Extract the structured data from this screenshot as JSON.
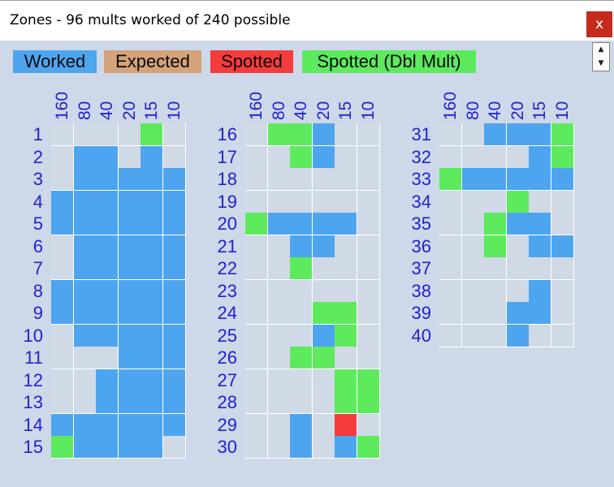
{
  "window": {
    "title": "Zones - 96 mults worked of 240 possible",
    "close_label": "x"
  },
  "legend": [
    {
      "label": "Worked",
      "color": "#4ea5ef"
    },
    {
      "label": "Expected",
      "color": "#d5a27a"
    },
    {
      "label": "Spotted",
      "color": "#f53b3b"
    },
    {
      "label": "Spotted (Dbl Mult)",
      "color": "#5dea5d"
    }
  ],
  "colors": {
    "W": "#4ea5ef",
    "E": "#d5a27a",
    "S": "#f53b3b",
    "D": "#5dea5d",
    "empty": "#d0d9e6"
  },
  "bands": [
    "160",
    "80",
    "40",
    "20",
    "15",
    "10"
  ],
  "zones": [
    {
      "zone": "1",
      "cells": [
        "",
        "",
        "",
        "",
        "D",
        ""
      ]
    },
    {
      "zone": "2",
      "cells": [
        "",
        "W",
        "W",
        "",
        "W",
        ""
      ]
    },
    {
      "zone": "3",
      "cells": [
        "",
        "W",
        "W",
        "W",
        "W",
        "W"
      ]
    },
    {
      "zone": "4",
      "cells": [
        "W",
        "W",
        "W",
        "W",
        "W",
        "W"
      ]
    },
    {
      "zone": "5",
      "cells": [
        "W",
        "W",
        "W",
        "W",
        "W",
        "W"
      ]
    },
    {
      "zone": "6",
      "cells": [
        "",
        "W",
        "W",
        "W",
        "W",
        "W"
      ]
    },
    {
      "zone": "7",
      "cells": [
        "",
        "W",
        "W",
        "W",
        "W",
        "W"
      ]
    },
    {
      "zone": "8",
      "cells": [
        "W",
        "W",
        "W",
        "W",
        "W",
        "W"
      ]
    },
    {
      "zone": "9",
      "cells": [
        "W",
        "W",
        "W",
        "W",
        "W",
        "W"
      ]
    },
    {
      "zone": "10",
      "cells": [
        "",
        "W",
        "W",
        "W",
        "W",
        "W"
      ]
    },
    {
      "zone": "11",
      "cells": [
        "",
        "",
        "",
        "W",
        "W",
        "W"
      ]
    },
    {
      "zone": "12",
      "cells": [
        "",
        "",
        "W",
        "W",
        "W",
        "W"
      ]
    },
    {
      "zone": "13",
      "cells": [
        "",
        "",
        "W",
        "W",
        "W",
        "W"
      ]
    },
    {
      "zone": "14",
      "cells": [
        "W",
        "W",
        "W",
        "W",
        "W",
        "W"
      ]
    },
    {
      "zone": "15",
      "cells": [
        "D",
        "W",
        "W",
        "W",
        "W",
        ""
      ]
    },
    {
      "zone": "16",
      "cells": [
        "",
        "D",
        "D",
        "W",
        "",
        ""
      ]
    },
    {
      "zone": "17",
      "cells": [
        "",
        "",
        "D",
        "W",
        "",
        ""
      ]
    },
    {
      "zone": "18",
      "cells": [
        "",
        "",
        "",
        "",
        "",
        ""
      ]
    },
    {
      "zone": "19",
      "cells": [
        "",
        "",
        "",
        "",
        "",
        ""
      ]
    },
    {
      "zone": "20",
      "cells": [
        "D",
        "W",
        "W",
        "W",
        "W",
        ""
      ]
    },
    {
      "zone": "21",
      "cells": [
        "",
        "",
        "W",
        "W",
        "",
        ""
      ]
    },
    {
      "zone": "22",
      "cells": [
        "",
        "",
        "D",
        "",
        "",
        ""
      ]
    },
    {
      "zone": "23",
      "cells": [
        "",
        "",
        "",
        "",
        "",
        ""
      ]
    },
    {
      "zone": "24",
      "cells": [
        "",
        "",
        "",
        "D",
        "D",
        ""
      ]
    },
    {
      "zone": "25",
      "cells": [
        "",
        "",
        "",
        "W",
        "D",
        ""
      ]
    },
    {
      "zone": "26",
      "cells": [
        "",
        "",
        "D",
        "D",
        "",
        ""
      ]
    },
    {
      "zone": "27",
      "cells": [
        "",
        "",
        "",
        "",
        "D",
        "D"
      ]
    },
    {
      "zone": "28",
      "cells": [
        "",
        "",
        "",
        "",
        "D",
        "D"
      ]
    },
    {
      "zone": "29",
      "cells": [
        "",
        "",
        "W",
        "",
        "S",
        ""
      ]
    },
    {
      "zone": "30",
      "cells": [
        "",
        "",
        "W",
        "",
        "W",
        "D"
      ]
    },
    {
      "zone": "31",
      "cells": [
        "",
        "",
        "W",
        "W",
        "W",
        "D"
      ]
    },
    {
      "zone": "32",
      "cells": [
        "",
        "",
        "",
        "",
        "W",
        "D"
      ]
    },
    {
      "zone": "33",
      "cells": [
        "D",
        "W",
        "W",
        "W",
        "W",
        "W"
      ]
    },
    {
      "zone": "34",
      "cells": [
        "",
        "",
        "",
        "D",
        "",
        ""
      ]
    },
    {
      "zone": "35",
      "cells": [
        "",
        "",
        "D",
        "W",
        "W",
        ""
      ]
    },
    {
      "zone": "36",
      "cells": [
        "",
        "",
        "D",
        "",
        "W",
        "W"
      ]
    },
    {
      "zone": "37",
      "cells": [
        "",
        "",
        "",
        "",
        "",
        ""
      ]
    },
    {
      "zone": "38",
      "cells": [
        "",
        "",
        "",
        "",
        "W",
        ""
      ]
    },
    {
      "zone": "39",
      "cells": [
        "",
        "",
        "",
        "W",
        "W",
        ""
      ]
    },
    {
      "zone": "40",
      "cells": [
        "",
        "",
        "",
        "W",
        "",
        ""
      ]
    }
  ]
}
